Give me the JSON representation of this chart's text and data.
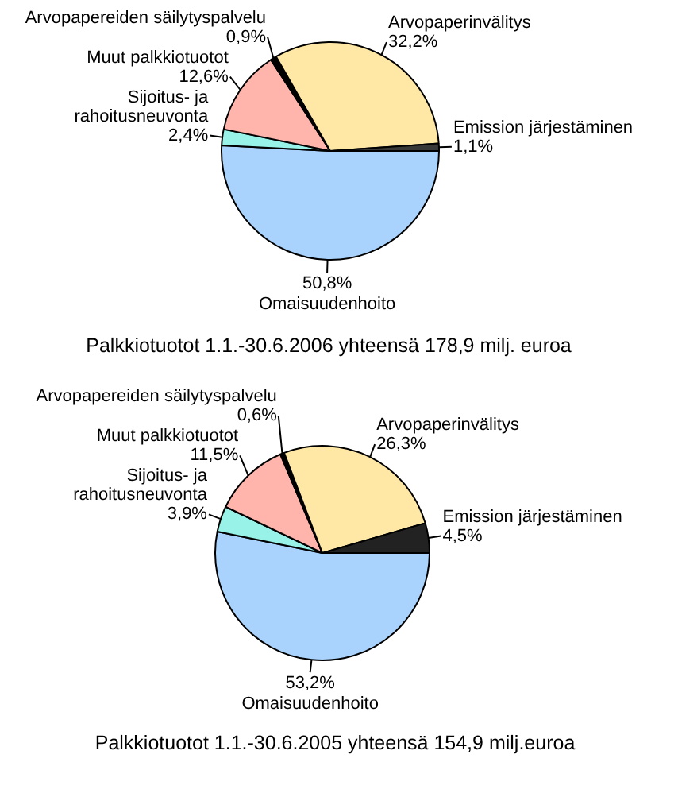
{
  "chart_data": [
    {
      "type": "pie",
      "title": "Palkkiotuotot 1.1.-30.6.2006 yhteensä 178,9 milj. euroa",
      "categories": [
        "Omaisuudenhoito",
        "Sijoitus- ja rahoitusneuvonta",
        "Muut palkkiotuotot",
        "Arvopapereiden säilytyspalvelu",
        "Arvopaperinvälitys",
        "Emission järjestäminen"
      ],
      "values": [
        50.8,
        2.4,
        12.6,
        0.9,
        32.2,
        1.1
      ],
      "colors": [
        "#a9d3fc",
        "#99f2e8",
        "#ffb4ac",
        "#000000",
        "#ffe8a6",
        "#383838"
      ],
      "value_labels": [
        "50,8%",
        "2,4%",
        "12,6%",
        "0,9%",
        "32,2%",
        "1,1%"
      ]
    },
    {
      "type": "pie",
      "title": "Palkkiotuotot 1.1.-30.6.2005 yhteensä 154,9 milj.euroa",
      "categories": [
        "Omaisuudenhoito",
        "Sijoitus- ja rahoitusneuvonta",
        "Muut palkkiotuotot",
        "Arvopapereiden säilytyspalvelu",
        "Arvopaperinvälitys",
        "Emission järjestäminen"
      ],
      "values": [
        53.2,
        3.9,
        11.5,
        0.6,
        26.3,
        4.5
      ],
      "colors": [
        "#a9d3fc",
        "#99f2e8",
        "#ffb4ac",
        "#000000",
        "#ffe8a6",
        "#222222"
      ],
      "value_labels": [
        "53,2%",
        "3,9%",
        "11,5%",
        "0,6%",
        "26,3%",
        "4,5%"
      ]
    }
  ]
}
